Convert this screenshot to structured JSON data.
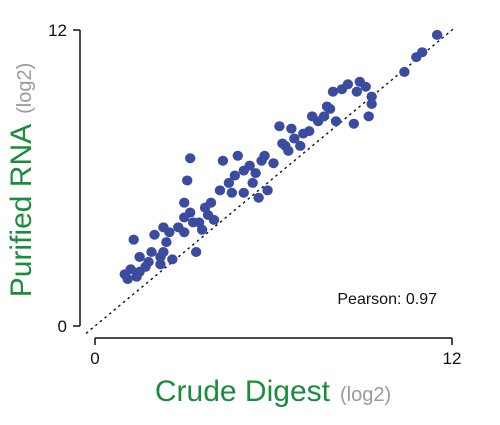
{
  "chart_data": {
    "type": "scatter",
    "xlabel": "Crude Digest",
    "xlabel_unit": "(log2)",
    "ylabel": "Purified RNA",
    "ylabel_unit": "(log2)",
    "xlim": [
      0,
      12
    ],
    "ylim": [
      0,
      12
    ],
    "x_ticks": [
      "0",
      "12"
    ],
    "y_ticks": [
      "0",
      "12"
    ],
    "annotation": "Pearson: 0.97",
    "reference_line": "y = x (dotted)",
    "grid": false,
    "legend": "none",
    "marker_color": "#3b4ba0",
    "axis_label_color": "#1a8c3e",
    "unit_label_color": "#9a9a9a",
    "points": [
      [
        11.5,
        11.8
      ],
      [
        11.0,
        11.1
      ],
      [
        10.8,
        10.9
      ],
      [
        10.4,
        10.3
      ],
      [
        9.3,
        9.3
      ],
      [
        9.3,
        9.0
      ],
      [
        9.2,
        8.5
      ],
      [
        9.1,
        9.7
      ],
      [
        8.9,
        9.9
      ],
      [
        8.8,
        9.5
      ],
      [
        8.7,
        8.2
      ],
      [
        8.5,
        9.8
      ],
      [
        8.3,
        9.6
      ],
      [
        8.0,
        9.5
      ],
      [
        7.9,
        8.8
      ],
      [
        7.8,
        8.9
      ],
      [
        7.7,
        8.5
      ],
      [
        7.5,
        8.3
      ],
      [
        7.2,
        7.9
      ],
      [
        7.0,
        7.8
      ],
      [
        6.9,
        7.3
      ],
      [
        6.7,
        7.6
      ],
      [
        6.5,
        7.1
      ],
      [
        6.3,
        7.4
      ],
      [
        6.2,
        8.1
      ],
      [
        6.0,
        6.6
      ],
      [
        5.7,
        6.9
      ],
      [
        5.6,
        6.7
      ],
      [
        5.4,
        6.2
      ],
      [
        5.2,
        6.5
      ],
      [
        5.0,
        6.3
      ],
      [
        5.0,
        5.4
      ],
      [
        4.8,
        6.9
      ],
      [
        4.7,
        6.1
      ],
      [
        4.5,
        5.8
      ],
      [
        4.2,
        5.5
      ],
      [
        4.0,
        4.3
      ],
      [
        3.9,
        5.0
      ],
      [
        3.8,
        4.5
      ],
      [
        3.6,
        3.9
      ],
      [
        3.5,
        4.2
      ],
      [
        3.4,
        3.0
      ],
      [
        3.2,
        6.8
      ],
      [
        3.2,
        4.6
      ],
      [
        3.1,
        5.9
      ],
      [
        3.0,
        5.0
      ],
      [
        3.0,
        4.4
      ],
      [
        2.8,
        4.0
      ],
      [
        2.6,
        2.7
      ],
      [
        2.5,
        3.8
      ],
      [
        2.4,
        3.4
      ],
      [
        2.3,
        3.0
      ],
      [
        2.2,
        2.5
      ],
      [
        2.2,
        2.8
      ],
      [
        2.0,
        3.7
      ],
      [
        1.9,
        3.0
      ],
      [
        1.8,
        2.6
      ],
      [
        1.7,
        2.4
      ],
      [
        1.5,
        2.8
      ],
      [
        1.5,
        2.2
      ],
      [
        1.4,
        2.0
      ],
      [
        1.2,
        2.3
      ],
      [
        1.1,
        1.9
      ],
      [
        1.3,
        3.5
      ],
      [
        5.8,
        5.5
      ],
      [
        5.5,
        5.2
      ],
      [
        4.3,
        6.7
      ],
      [
        6.6,
        8.0
      ],
      [
        7.3,
        8.5
      ],
      [
        3.0,
        3.8
      ],
      [
        3.3,
        4.2
      ],
      [
        5.3,
        5.8
      ],
      [
        1.0,
        2.1
      ],
      [
        4.6,
        5.4
      ],
      [
        8.1,
        8.3
      ],
      [
        6.4,
        7.3
      ],
      [
        2.3,
        4.0
      ],
      [
        3.7,
        4.8
      ]
    ]
  }
}
